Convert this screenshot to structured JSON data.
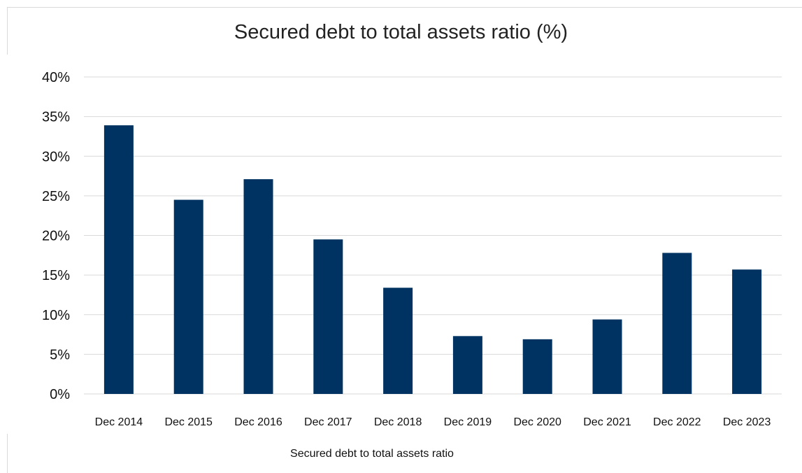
{
  "chart_data": {
    "type": "bar",
    "title": "Secured debt to total assets ratio (%)",
    "categories": [
      "Dec 2014",
      "Dec 2015",
      "Dec 2016",
      "Dec 2017",
      "Dec 2018",
      "Dec 2019",
      "Dec 2020",
      "Dec 2021",
      "Dec 2022",
      "Dec 2023"
    ],
    "series": [
      {
        "name": "Secured debt to total assets ratio",
        "values": [
          33.9,
          24.5,
          27.1,
          19.5,
          13.4,
          7.3,
          6.9,
          9.4,
          17.8,
          15.7
        ],
        "color": "#003361"
      }
    ],
    "ylim": [
      0,
      40
    ],
    "yticks": [
      0,
      5,
      10,
      15,
      20,
      25,
      30,
      35,
      40
    ],
    "ytick_labels": [
      "0%",
      "5%",
      "10%",
      "15%",
      "20%",
      "25%",
      "30%",
      "35%",
      "40%"
    ],
    "grid": true,
    "gridline_color": "#d9d9d9",
    "legend_position": "bottom"
  }
}
